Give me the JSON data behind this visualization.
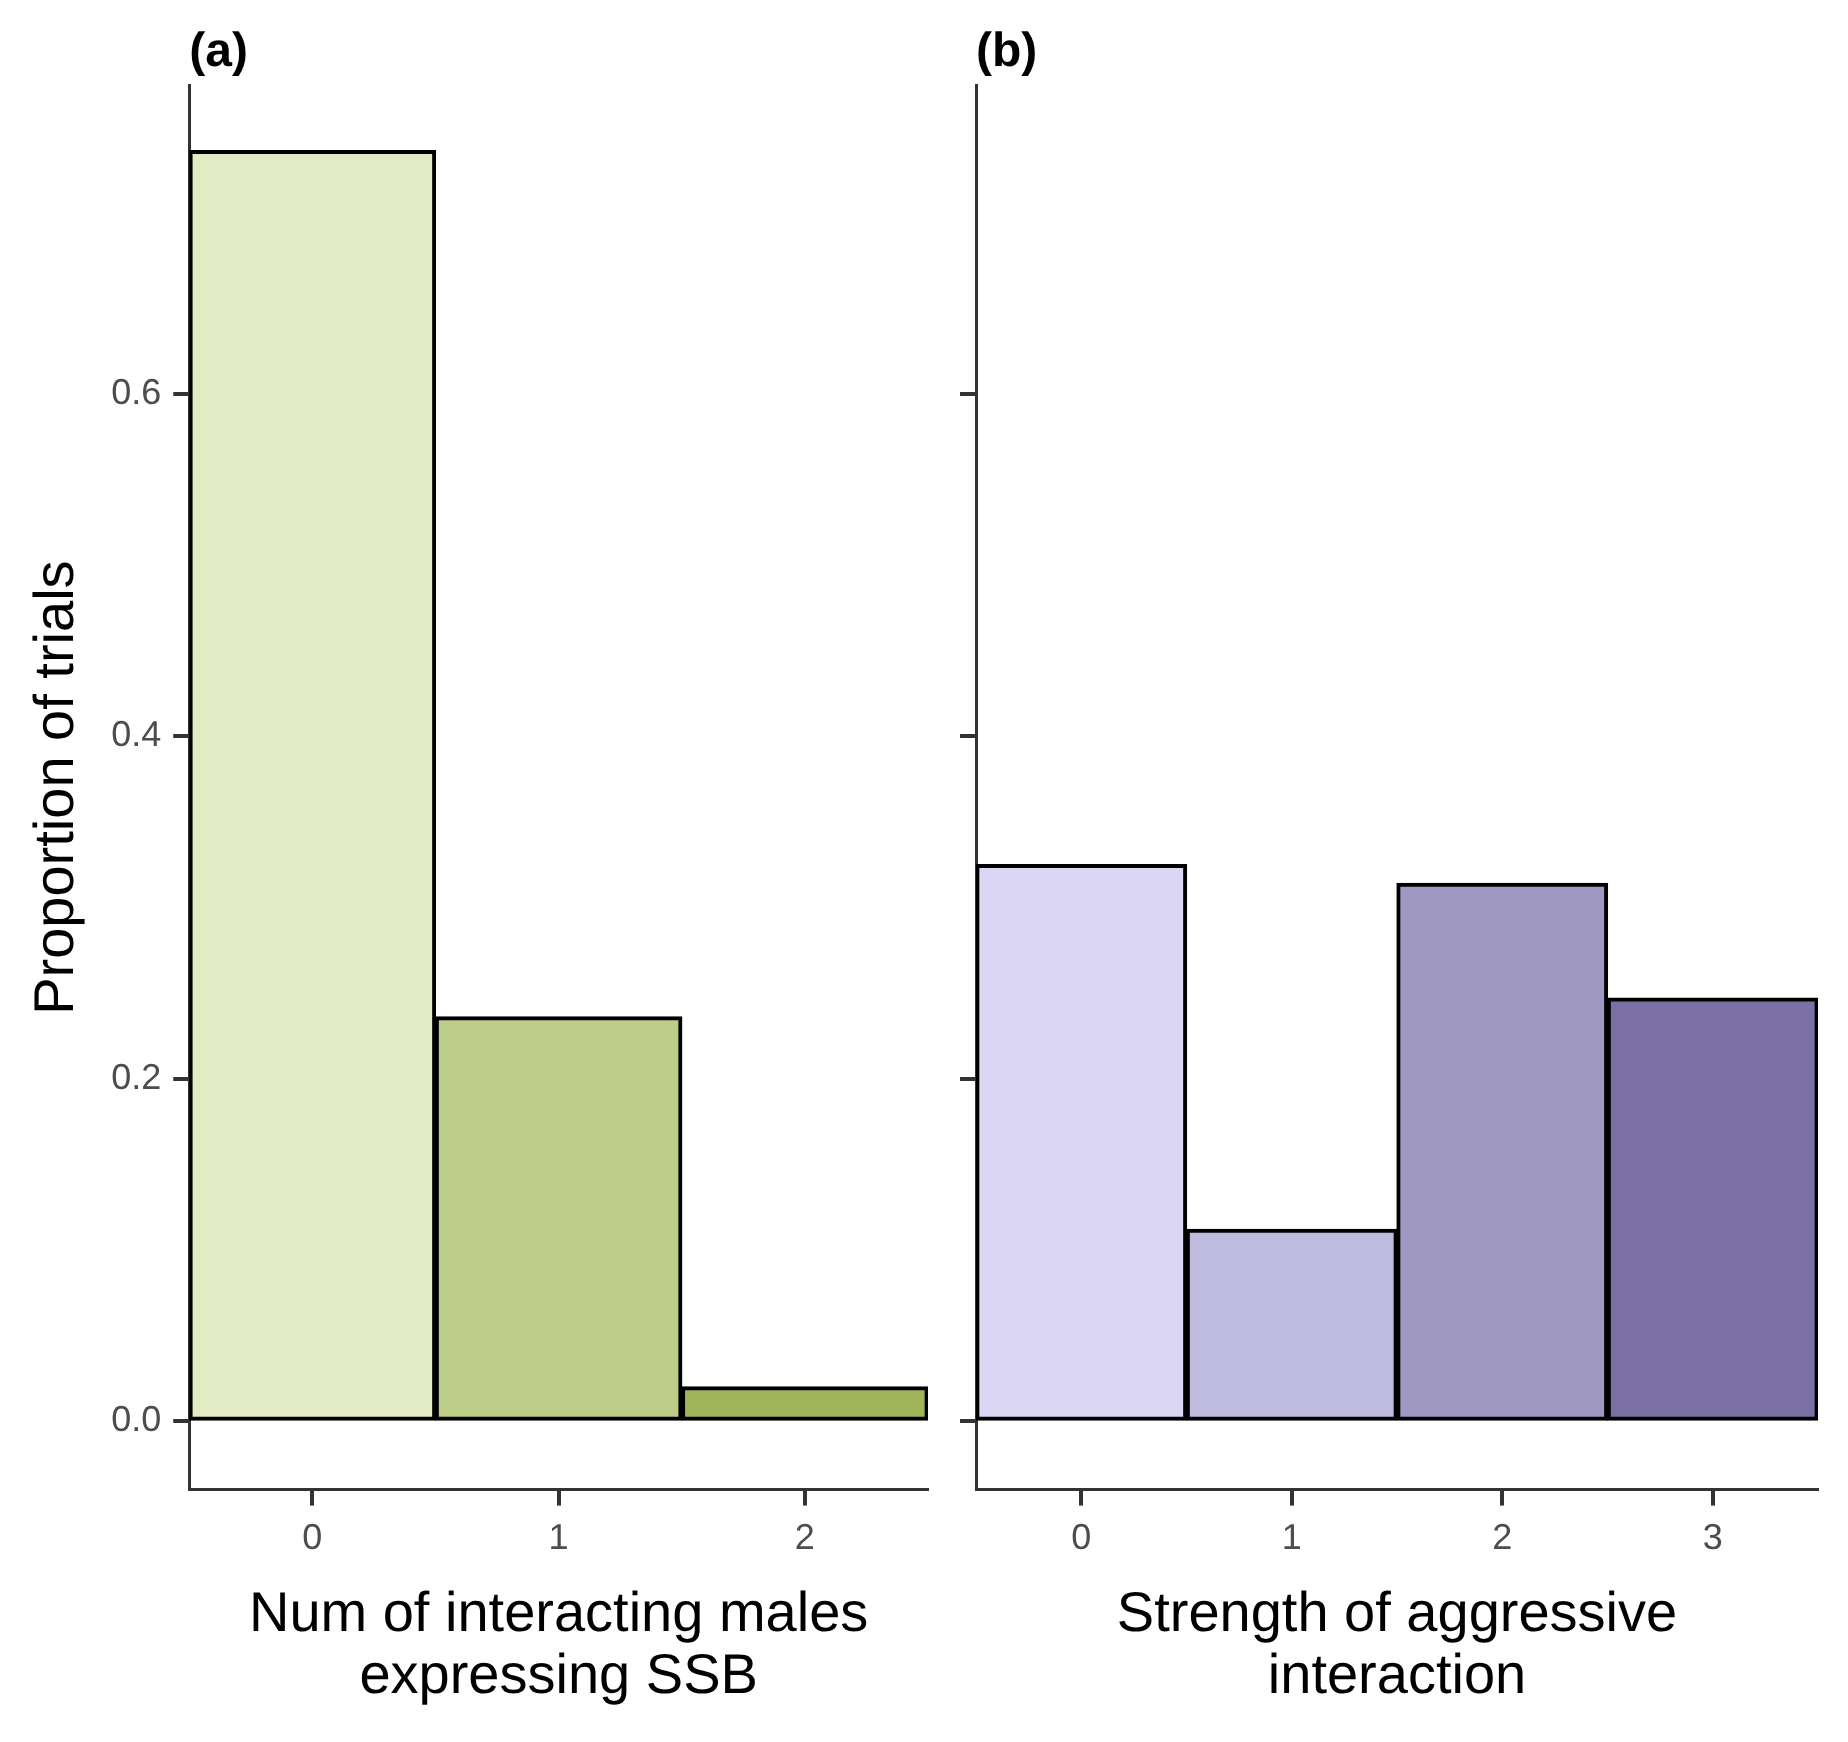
{
  "chart_data": [
    {
      "type": "bar",
      "title": "(a)",
      "xlabel": "Num of interacting males\nexpressing SSB",
      "ylabel": "Proportion of trials",
      "categories": [
        "0",
        "1",
        "2"
      ],
      "values": [
        0.742,
        0.236,
        0.02
      ],
      "colors": [
        "#e3ebc4",
        "#bfcd8a",
        "#a0b45a"
      ],
      "ylim": [
        -0.04,
        0.78
      ],
      "yticks": [
        {
          "value": 0,
          "label": "0.0"
        },
        0.2,
        0.4,
        0.6
      ],
      "grid": false,
      "legend": false
    },
    {
      "type": "bar",
      "title": "(b)",
      "xlabel": "Strength of aggressive\ninteraction",
      "categories": [
        "0",
        "1",
        "2",
        "3"
      ],
      "values": [
        0.325,
        0.112,
        0.314,
        0.247
      ],
      "colors": [
        "#dcd6f5",
        "#c0bce0",
        "#9f98c3",
        "#7a70a5"
      ],
      "ylim": [
        -0.04,
        0.78
      ],
      "yticks": [
        {
          "value": 0,
          "label": null
        },
        {
          "value": 0.2,
          "label": null
        },
        {
          "value": 0.4,
          "label": null
        },
        {
          "value": 0.6,
          "label": null
        }
      ],
      "tick_labels": "x",
      "grid": false,
      "legend": false
    }
  ]
}
